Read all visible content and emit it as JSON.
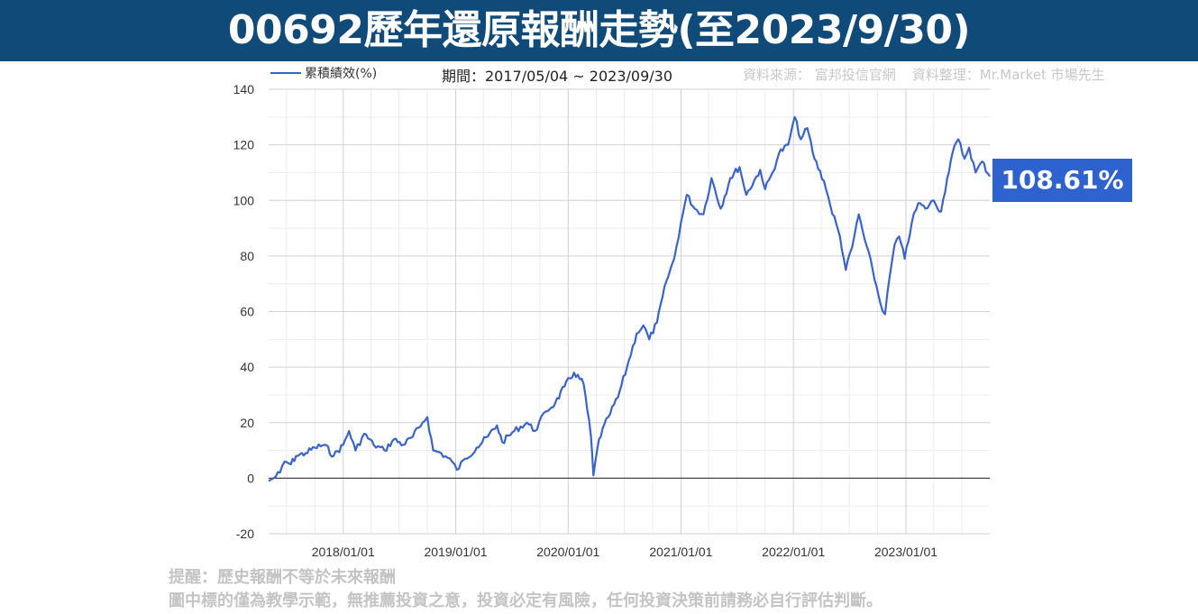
{
  "header": {
    "title": "00692歷年還原報酬走勢(至2023/9/30)"
  },
  "legend": {
    "series_label": "累積績效(%)"
  },
  "period_text": "期間：2017/05/04 ~ 2023/09/30",
  "source": {
    "source_text": "資料來源： 富邦投信官網",
    "compiled_text": "資料整理：Mr.Market 市場先生"
  },
  "callout": {
    "value_text": "108.61%"
  },
  "notes": {
    "line1": "提醒：歷史報酬不等於未來報酬",
    "line2": "圖中標的僅為教學示範，無推薦投資之意，投資必定有風險，任何投資決策前請務必自行評估判斷。"
  },
  "colors": {
    "banner": "#0f4a78",
    "line": "#3a64c8",
    "callout": "#2e62cf"
  },
  "chart_data": {
    "type": "line",
    "xlabel": "",
    "ylabel": "",
    "ylim": [
      -20,
      140
    ],
    "yticks": [
      -20,
      0,
      20,
      40,
      60,
      80,
      100,
      120,
      140
    ],
    "xticks": [
      "2018/01/01",
      "2019/01/01",
      "2020/01/01",
      "2021/01/01",
      "2022/01/01",
      "2023/01/01"
    ],
    "x_range": [
      "2017/05/04",
      "2023/09/30"
    ],
    "grid": true,
    "legend_position": "top-left",
    "series": [
      {
        "name": "累積績效(%)",
        "points": [
          [
            "2017/05/04",
            -1
          ],
          [
            "2017/05/20",
            0
          ],
          [
            "2017/06/10",
            2
          ],
          [
            "2017/06/25",
            6
          ],
          [
            "2017/07/15",
            5
          ],
          [
            "2017/08/01",
            8
          ],
          [
            "2017/09/01",
            9
          ],
          [
            "2017/10/01",
            11
          ],
          [
            "2017/11/01",
            12
          ],
          [
            "2017/12/01",
            8
          ],
          [
            "2018/01/01",
            12
          ],
          [
            "2018/01/20",
            17
          ],
          [
            "2018/02/10",
            10
          ],
          [
            "2018/03/10",
            16
          ],
          [
            "2018/04/10",
            12
          ],
          [
            "2018/05/15",
            10
          ],
          [
            "2018/06/15",
            14
          ],
          [
            "2018/07/15",
            12
          ],
          [
            "2018/08/15",
            15
          ],
          [
            "2018/09/15",
            20
          ],
          [
            "2018/10/01",
            22
          ],
          [
            "2018/10/20",
            10
          ],
          [
            "2018/11/15",
            9
          ],
          [
            "2018/12/20",
            6
          ],
          [
            "2019/01/05",
            3
          ],
          [
            "2019/02/01",
            7
          ],
          [
            "2019/03/10",
            11
          ],
          [
            "2019/04/15",
            15
          ],
          [
            "2019/05/15",
            19
          ],
          [
            "2019/06/01",
            13
          ],
          [
            "2019/07/10",
            17
          ],
          [
            "2019/08/20",
            20
          ],
          [
            "2019/09/15",
            17
          ],
          [
            "2019/10/20",
            24
          ],
          [
            "2019/11/20",
            27
          ],
          [
            "2019/12/20",
            33
          ],
          [
            "2020/01/20",
            38
          ],
          [
            "2020/02/20",
            34
          ],
          [
            "2020/03/15",
            15
          ],
          [
            "2020/03/23",
            1
          ],
          [
            "2020/04/10",
            14
          ],
          [
            "2020/05/10",
            22
          ],
          [
            "2020/06/10",
            29
          ],
          [
            "2020/07/10",
            40
          ],
          [
            "2020/08/10",
            52
          ],
          [
            "2020/09/01",
            55
          ],
          [
            "2020/09/20",
            50
          ],
          [
            "2020/10/15",
            56
          ],
          [
            "2020/11/15",
            71
          ],
          [
            "2020/12/10",
            79
          ],
          [
            "2021/01/01",
            92
          ],
          [
            "2021/01/20",
            102
          ],
          [
            "2021/02/15",
            97
          ],
          [
            "2021/03/15",
            95
          ],
          [
            "2021/04/10",
            108
          ],
          [
            "2021/05/10",
            97
          ],
          [
            "2021/06/10",
            108
          ],
          [
            "2021/07/10",
            112
          ],
          [
            "2021/08/01",
            102
          ],
          [
            "2021/09/15",
            111
          ],
          [
            "2021/10/01",
            104
          ],
          [
            "2021/10/25",
            110
          ],
          [
            "2021/11/15",
            117
          ],
          [
            "2021/12/15",
            120
          ],
          [
            "2022/01/05",
            130
          ],
          [
            "2022/01/25",
            122
          ],
          [
            "2022/02/15",
            126
          ],
          [
            "2022/03/10",
            115
          ],
          [
            "2022/04/10",
            107
          ],
          [
            "2022/05/01",
            98
          ],
          [
            "2022/06/01",
            87
          ],
          [
            "2022/06/20",
            75
          ],
          [
            "2022/07/10",
            83
          ],
          [
            "2022/08/01",
            95
          ],
          [
            "2022/08/20",
            86
          ],
          [
            "2022/09/15",
            75
          ],
          [
            "2022/10/10",
            63
          ],
          [
            "2022/10/25",
            59
          ],
          [
            "2022/11/10",
            73
          ],
          [
            "2022/11/25",
            84
          ],
          [
            "2022/12/10",
            87
          ],
          [
            "2022/12/28",
            79
          ],
          [
            "2023/01/20",
            92
          ],
          [
            "2023/02/10",
            99
          ],
          [
            "2023/03/05",
            97
          ],
          [
            "2023/04/01",
            100
          ],
          [
            "2023/04/25",
            96
          ],
          [
            "2023/05/15",
            108
          ],
          [
            "2023/06/01",
            117
          ],
          [
            "2023/06/20",
            122
          ],
          [
            "2023/07/10",
            115
          ],
          [
            "2023/07/25",
            119
          ],
          [
            "2023/08/15",
            110
          ],
          [
            "2023/09/05",
            114
          ],
          [
            "2023/09/30",
            108.61
          ]
        ]
      }
    ]
  }
}
